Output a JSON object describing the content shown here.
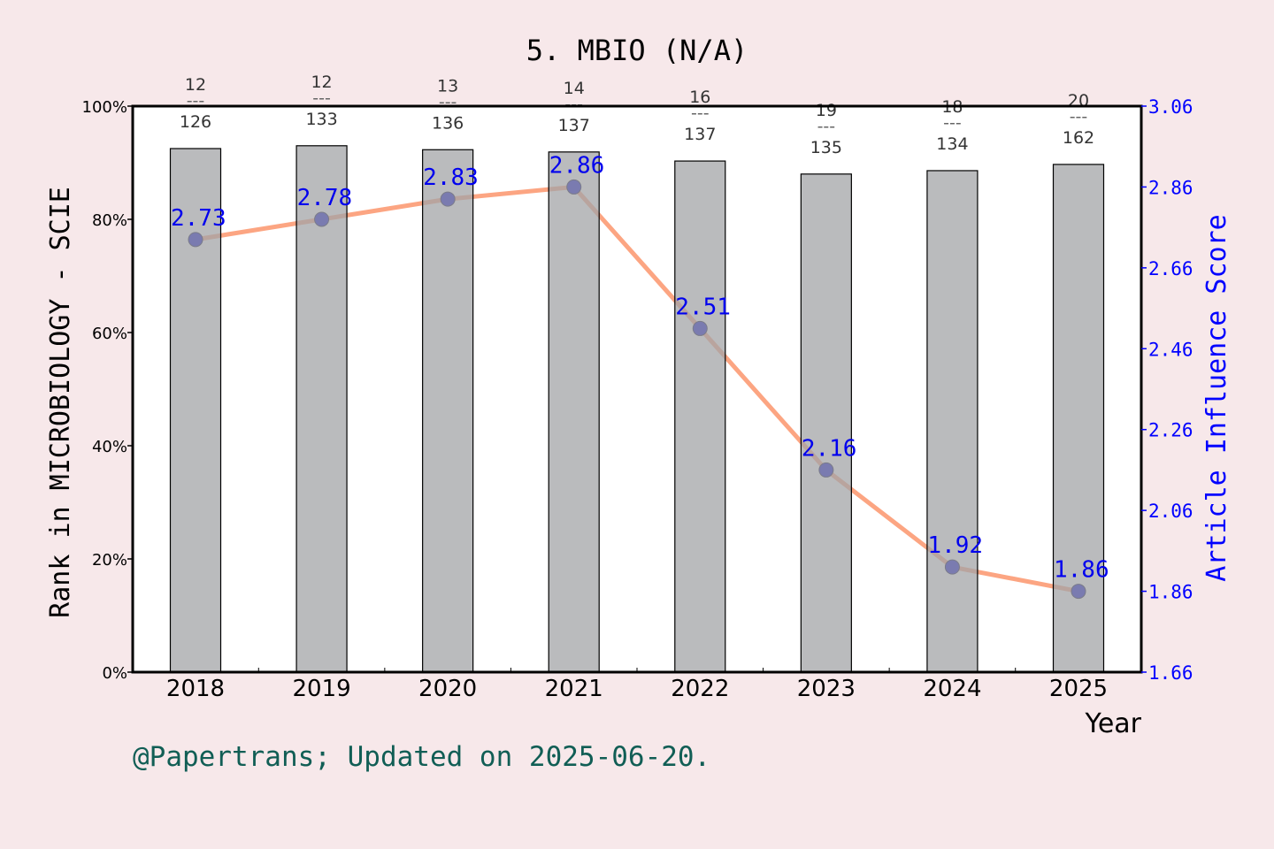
{
  "chart_data": {
    "type": "bar+line",
    "title": "5. MBIO (N/A)",
    "xlabel": "Year",
    "ylabel_left": "Rank in MICROBIOLOGY - SCIE",
    "ylabel_right": "Article Influence Score",
    "categories": [
      "2018",
      "2019",
      "2020",
      "2021",
      "2022",
      "2023",
      "2024",
      "2025"
    ],
    "left_axis": {
      "range": [
        0,
        100
      ],
      "ticks": [
        "0%",
        "20%",
        "40%",
        "60%",
        "80%",
        "100%"
      ]
    },
    "right_axis": {
      "range": [
        1.66,
        3.06
      ],
      "ticks": [
        "1.66",
        "1.86",
        "2.06",
        "2.26",
        "2.46",
        "2.66",
        "2.86",
        "3.06"
      ]
    },
    "bars": {
      "values_percent": [
        92.5,
        93.0,
        92.3,
        91.9,
        90.3,
        88.0,
        88.6,
        89.7
      ],
      "rank": [
        "12",
        "12",
        "13",
        "14",
        "16",
        "19",
        "18",
        "20"
      ],
      "total": [
        "126",
        "133",
        "136",
        "137",
        "137",
        "135",
        "134",
        "162"
      ],
      "separator": "---"
    },
    "line": {
      "values": [
        2.73,
        2.78,
        2.83,
        2.86,
        2.51,
        2.16,
        1.92,
        1.86
      ],
      "labels": [
        "2.73",
        "2.78",
        "2.83",
        "2.86",
        "2.51",
        "2.16",
        "1.92",
        "1.86"
      ]
    },
    "colors": {
      "background": "#f7e8ea",
      "bar": "#b8b9bb",
      "line": "#fca582",
      "marker": "#0000cc",
      "right_axis": "#0000ff",
      "footer": "#115e55"
    }
  },
  "footer": "@Papertrans; Updated on 2025-06-20."
}
